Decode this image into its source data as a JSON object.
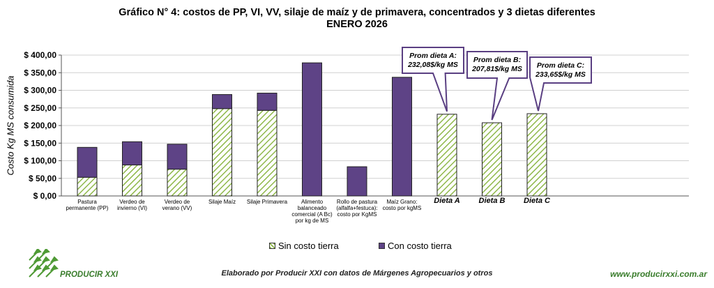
{
  "header": {
    "title_line1": "Gráfico N° 4: costos de PP, VI, VV, silaje de maíz y de primavera, concentrados y 3 dietas diferentes",
    "title_line2": "ENERO 2026"
  },
  "chart_data": {
    "type": "bar",
    "stacked": true,
    "title": "Gráfico N° 4: costos de PP, VI, VV, silaje de maíz y de primavera, concentrados y 3 dietas diferentes — ENERO 2026",
    "ylabel": "Costo Kg MS consumida",
    "xlabel": "",
    "ylim": [
      0,
      400
    ],
    "ytick_values": [
      0,
      50,
      100,
      150,
      200,
      250,
      300,
      350,
      400
    ],
    "ytick_labels": [
      "$ 0,00",
      "$ 50,00",
      "$ 100,00",
      "$ 150,00",
      "$ 200,00",
      "$ 250,00",
      "$ 300,00",
      "$ 350,00",
      "$ 400,00"
    ],
    "categories": [
      [
        "Pastura",
        "permanente (PP)"
      ],
      [
        "Verdeo de",
        "invierno (VI)"
      ],
      [
        "Verdeo de",
        "verano (VV)"
      ],
      [
        "Silaje Maíz"
      ],
      [
        "Silaje Primavera"
      ],
      [
        "Alimento",
        "balanceado",
        "comercial (A Bc)",
        "por kg de MS"
      ],
      [
        "Rollo de pastura",
        "(alfalfa+festuca):",
        "costo por KgMS"
      ],
      [
        "Maíz Grano:",
        "costo por kgMS"
      ],
      [
        "Dieta A"
      ],
      [
        "Dieta B"
      ],
      [
        "Dieta C"
      ]
    ],
    "large_label_categories": [
      8,
      9,
      10
    ],
    "series": [
      {
        "name": "Sin costo tierra",
        "values": [
          53,
          88,
          76,
          248,
          243,
          0,
          0,
          0,
          232.08,
          207.81,
          233.65
        ]
      },
      {
        "name": "Con costo tierra",
        "values": [
          85,
          66,
          71,
          40,
          49,
          378,
          83,
          337,
          0,
          0,
          0
        ]
      }
    ],
    "legend_position": "bottom",
    "annotations": [
      {
        "category": 8,
        "line1": "Prom dieta A:",
        "line2": "232,08$/kg MS"
      },
      {
        "category": 9,
        "line1": "Prom dieta B:",
        "line2": "207,81$/kg MS"
      },
      {
        "category": 10,
        "line1": "Prom dieta C:",
        "line2": "233,65$/kg MS"
      }
    ]
  },
  "colors": {
    "hatch_green": "#8fb84a",
    "stack_purple": "#5e4386",
    "callout_border": "#5a3f82",
    "brand_green": "#3a7d2c"
  },
  "footer": {
    "brand": "PRODUCIR XXI",
    "credit": "Elaborado por Producir XXI con datos  de Márgenes  Agropecuarios  y otros",
    "website": "www.producirxxi.com.ar"
  }
}
